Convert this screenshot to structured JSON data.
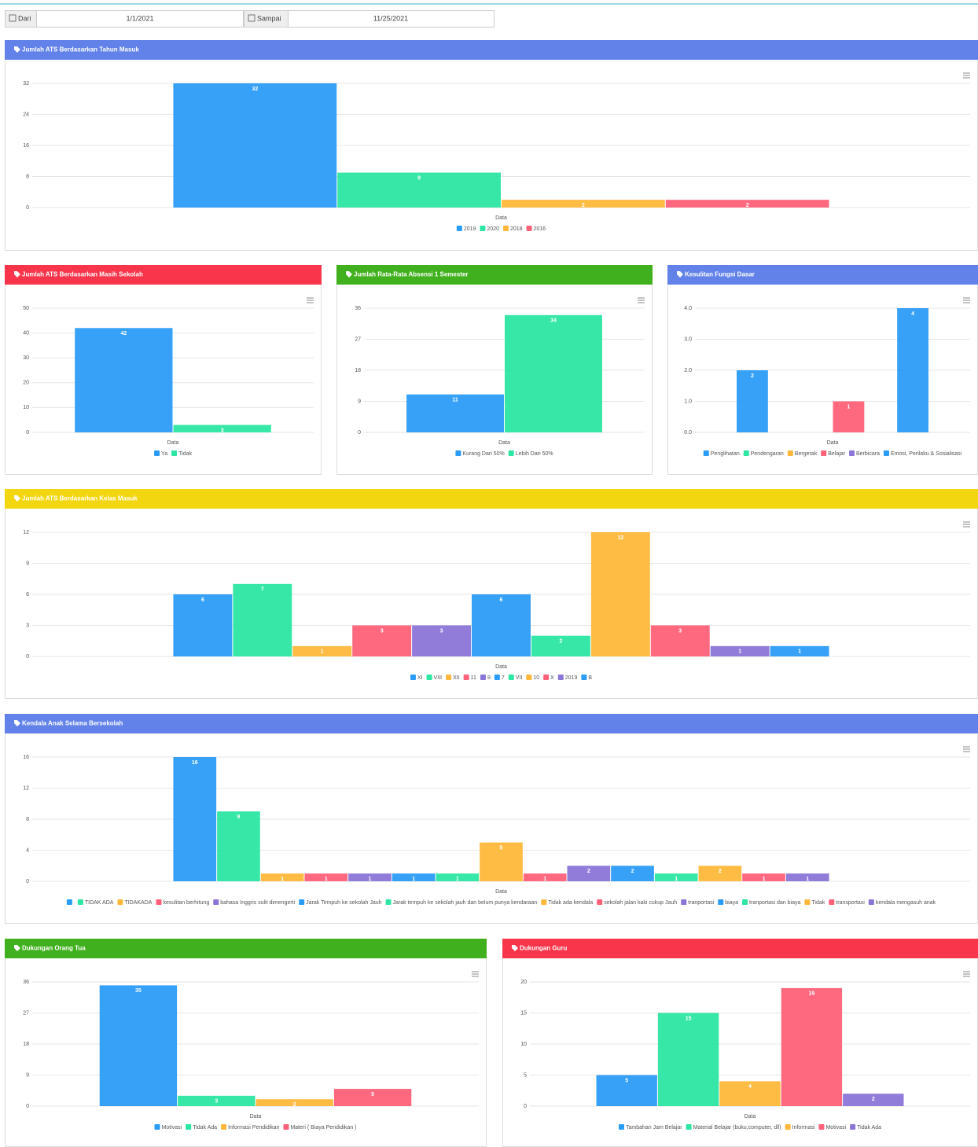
{
  "filter": {
    "from_label": "Dari",
    "from_value": "1/1/2021",
    "to_label": "Sampai",
    "to_value": "11/25/2021"
  },
  "chart_data": [
    {
      "type": "bar",
      "title": "Jumlah ATS Berdasarkan Tahun Masuk",
      "header_color": "#6282e9",
      "categories": [
        "Data"
      ],
      "ylim": [
        0,
        32
      ],
      "yticks": [
        0,
        8,
        16,
        24,
        32
      ],
      "grid": true,
      "series": [
        {
          "name": "2019",
          "color": "#2b9cf5",
          "values": [
            32
          ]
        },
        {
          "name": "2020",
          "color": "#2ce6a2",
          "values": [
            9
          ]
        },
        {
          "name": "2018",
          "color": "#ffb83b",
          "values": [
            2
          ]
        },
        {
          "name": "2016",
          "color": "#ff6179",
          "values": [
            2
          ]
        }
      ]
    },
    {
      "type": "bar",
      "title": "Jumlah ATS Berdasarkan Masih Sekolah",
      "header_color": "#f8354b",
      "categories": [
        "Data"
      ],
      "ylim": [
        0,
        50
      ],
      "yticks": [
        0,
        10,
        20,
        30,
        40,
        50
      ],
      "grid": true,
      "series": [
        {
          "name": "Ya",
          "color": "#2b9cf5",
          "values": [
            42
          ]
        },
        {
          "name": "Tidak",
          "color": "#2ce6a2",
          "values": [
            3
          ]
        }
      ]
    },
    {
      "type": "bar",
      "title": "Jumlah Rata-Rata Absensi 1 Semester",
      "header_color": "#41b01e",
      "categories": [
        "Data"
      ],
      "ylim": [
        0,
        36
      ],
      "yticks": [
        0,
        9,
        18,
        27,
        36
      ],
      "grid": true,
      "series": [
        {
          "name": "Kurang Dari 50%",
          "color": "#2b9cf5",
          "values": [
            11
          ]
        },
        {
          "name": "Lebih Dari 50%",
          "color": "#2ce6a2",
          "values": [
            34
          ]
        }
      ]
    },
    {
      "type": "bar",
      "title": "Kesulitan Fungsi Dasar",
      "header_color": "#6282e9",
      "categories": [
        "Data"
      ],
      "ylim": [
        0,
        4
      ],
      "yticks": [
        {
          "value": 0,
          "label": "0.0"
        },
        {
          "value": 1,
          "label": "1.0"
        },
        {
          "value": 2,
          "label": "2.0"
        },
        {
          "value": 3,
          "label": "3.0"
        },
        {
          "value": 4,
          "label": "4.0"
        }
      ],
      "grid": true,
      "series": [
        {
          "name": "Penglihatan",
          "color": "#2b9cf5",
          "values": [
            2
          ]
        },
        {
          "name": "Pendengaran",
          "color": "#2ce6a2",
          "values": [
            null
          ]
        },
        {
          "name": "Bergerak",
          "color": "#ffb83b",
          "values": [
            null
          ]
        },
        {
          "name": "Belajar",
          "color": "#ff6179",
          "values": [
            1
          ]
        },
        {
          "name": "Berbicara",
          "color": "#8b75d7",
          "values": [
            null
          ]
        },
        {
          "name": "Emosi, Perilaku & Sosialisasi",
          "color": "#2b9cf5",
          "values": [
            4
          ]
        }
      ]
    },
    {
      "type": "bar",
      "title": "Jumlah ATS Berdasarkan Kelas Masuk",
      "header_color": "#f2d60f",
      "categories": [
        "Data"
      ],
      "ylim": [
        0,
        12
      ],
      "yticks": [
        0,
        3,
        6,
        9,
        12
      ],
      "grid": true,
      "series": [
        {
          "name": "XI",
          "color": "#2b9cf5",
          "values": [
            6
          ]
        },
        {
          "name": "VIII",
          "color": "#2ce6a2",
          "values": [
            7
          ]
        },
        {
          "name": "XII",
          "color": "#ffb83b",
          "values": [
            1
          ]
        },
        {
          "name": "11",
          "color": "#ff6179",
          "values": [
            3
          ]
        },
        {
          "name": "8",
          "color": "#8b75d7",
          "values": [
            3
          ]
        },
        {
          "name": "7",
          "color": "#2b9cf5",
          "values": [
            6
          ]
        },
        {
          "name": "VII",
          "color": "#2ce6a2",
          "values": [
            2
          ]
        },
        {
          "name": "10",
          "color": "#ffb83b",
          "values": [
            12
          ]
        },
        {
          "name": "X",
          "color": "#ff6179",
          "values": [
            3
          ]
        },
        {
          "name": "2019",
          "color": "#8b75d7",
          "values": [
            1
          ]
        },
        {
          "name": "B",
          "color": "#2b9cf5",
          "values": [
            1
          ]
        }
      ]
    },
    {
      "type": "bar",
      "title": "Kendala Anak Selama Bersekolah",
      "header_color": "#6282e9",
      "categories": [
        "Data"
      ],
      "ylim": [
        0,
        16
      ],
      "yticks": [
        0,
        4,
        8,
        12,
        16
      ],
      "grid": true,
      "series": [
        {
          "name": null,
          "color": "#2b9cf5",
          "values": [
            16
          ]
        },
        {
          "name": "TIDAK ADA",
          "color": "#2ce6a2",
          "values": [
            9
          ]
        },
        {
          "name": "TIDAKADA",
          "color": "#ffb83b",
          "values": [
            1
          ]
        },
        {
          "name": "kesulitan berhitung",
          "color": "#ff6179",
          "values": [
            1
          ]
        },
        {
          "name": "bahasa Inggris sulit dimengerti",
          "color": "#8b75d7",
          "values": [
            1
          ]
        },
        {
          "name": "Jarak Tempuh ke sekolah Jauh",
          "color": "#2b9cf5",
          "values": [
            1
          ]
        },
        {
          "name": "Jarak tempuh ke sekolah jauh dan belum punya kendaraan",
          "color": "#2ce6a2",
          "values": [
            1
          ]
        },
        {
          "name": "Tidak ada kendala",
          "color": "#ffb83b",
          "values": [
            5
          ]
        },
        {
          "name": "sekolah jalan kaki cukup Jauh",
          "color": "#ff6179",
          "values": [
            1
          ]
        },
        {
          "name": "tranportasi",
          "color": "#8b75d7",
          "values": [
            2
          ]
        },
        {
          "name": "biaya",
          "color": "#2b9cf5",
          "values": [
            2
          ]
        },
        {
          "name": "tranportasi dan biaya",
          "color": "#2ce6a2",
          "values": [
            1
          ]
        },
        {
          "name": "Tidak",
          "color": "#ffb83b",
          "values": [
            2
          ]
        },
        {
          "name": "transportasi",
          "color": "#ff6179",
          "values": [
            1
          ]
        },
        {
          "name": "kendala mengasuh anak",
          "color": "#8b75d7",
          "values": [
            1
          ]
        }
      ]
    },
    {
      "type": "bar",
      "title": "Dukungan Orang Tua",
      "header_color": "#41b01e",
      "categories": [
        "Data"
      ],
      "ylim": [
        0,
        36
      ],
      "yticks": [
        0,
        9,
        18,
        27,
        36
      ],
      "grid": true,
      "series": [
        {
          "name": "Motivasi",
          "color": "#2b9cf5",
          "values": [
            35
          ]
        },
        {
          "name": "Tidak Ada",
          "color": "#2ce6a2",
          "values": [
            3
          ]
        },
        {
          "name": "Informasi Pendidikan",
          "color": "#ffb83b",
          "values": [
            2
          ]
        },
        {
          "name": "Materi ( Biaya Pendidikan )",
          "color": "#ff6179",
          "values": [
            5
          ]
        }
      ]
    },
    {
      "type": "bar",
      "title": "Dukungan Guru",
      "header_color": "#f8354b",
      "categories": [
        "Data"
      ],
      "ylim": [
        0,
        20
      ],
      "yticks": [
        0,
        5,
        10,
        15,
        20
      ],
      "grid": true,
      "series": [
        {
          "name": "Tambahan Jam Belajar",
          "color": "#2b9cf5",
          "values": [
            5
          ]
        },
        {
          "name": "Material Belajar (buku,computer, dll)",
          "color": "#2ce6a2",
          "values": [
            15
          ]
        },
        {
          "name": "Informasi",
          "color": "#ffb83b",
          "values": [
            4
          ]
        },
        {
          "name": "Motivasi",
          "color": "#ff6179",
          "values": [
            19
          ]
        },
        {
          "name": "Tidak Ada",
          "color": "#8b75d7",
          "values": [
            2
          ]
        }
      ]
    }
  ]
}
